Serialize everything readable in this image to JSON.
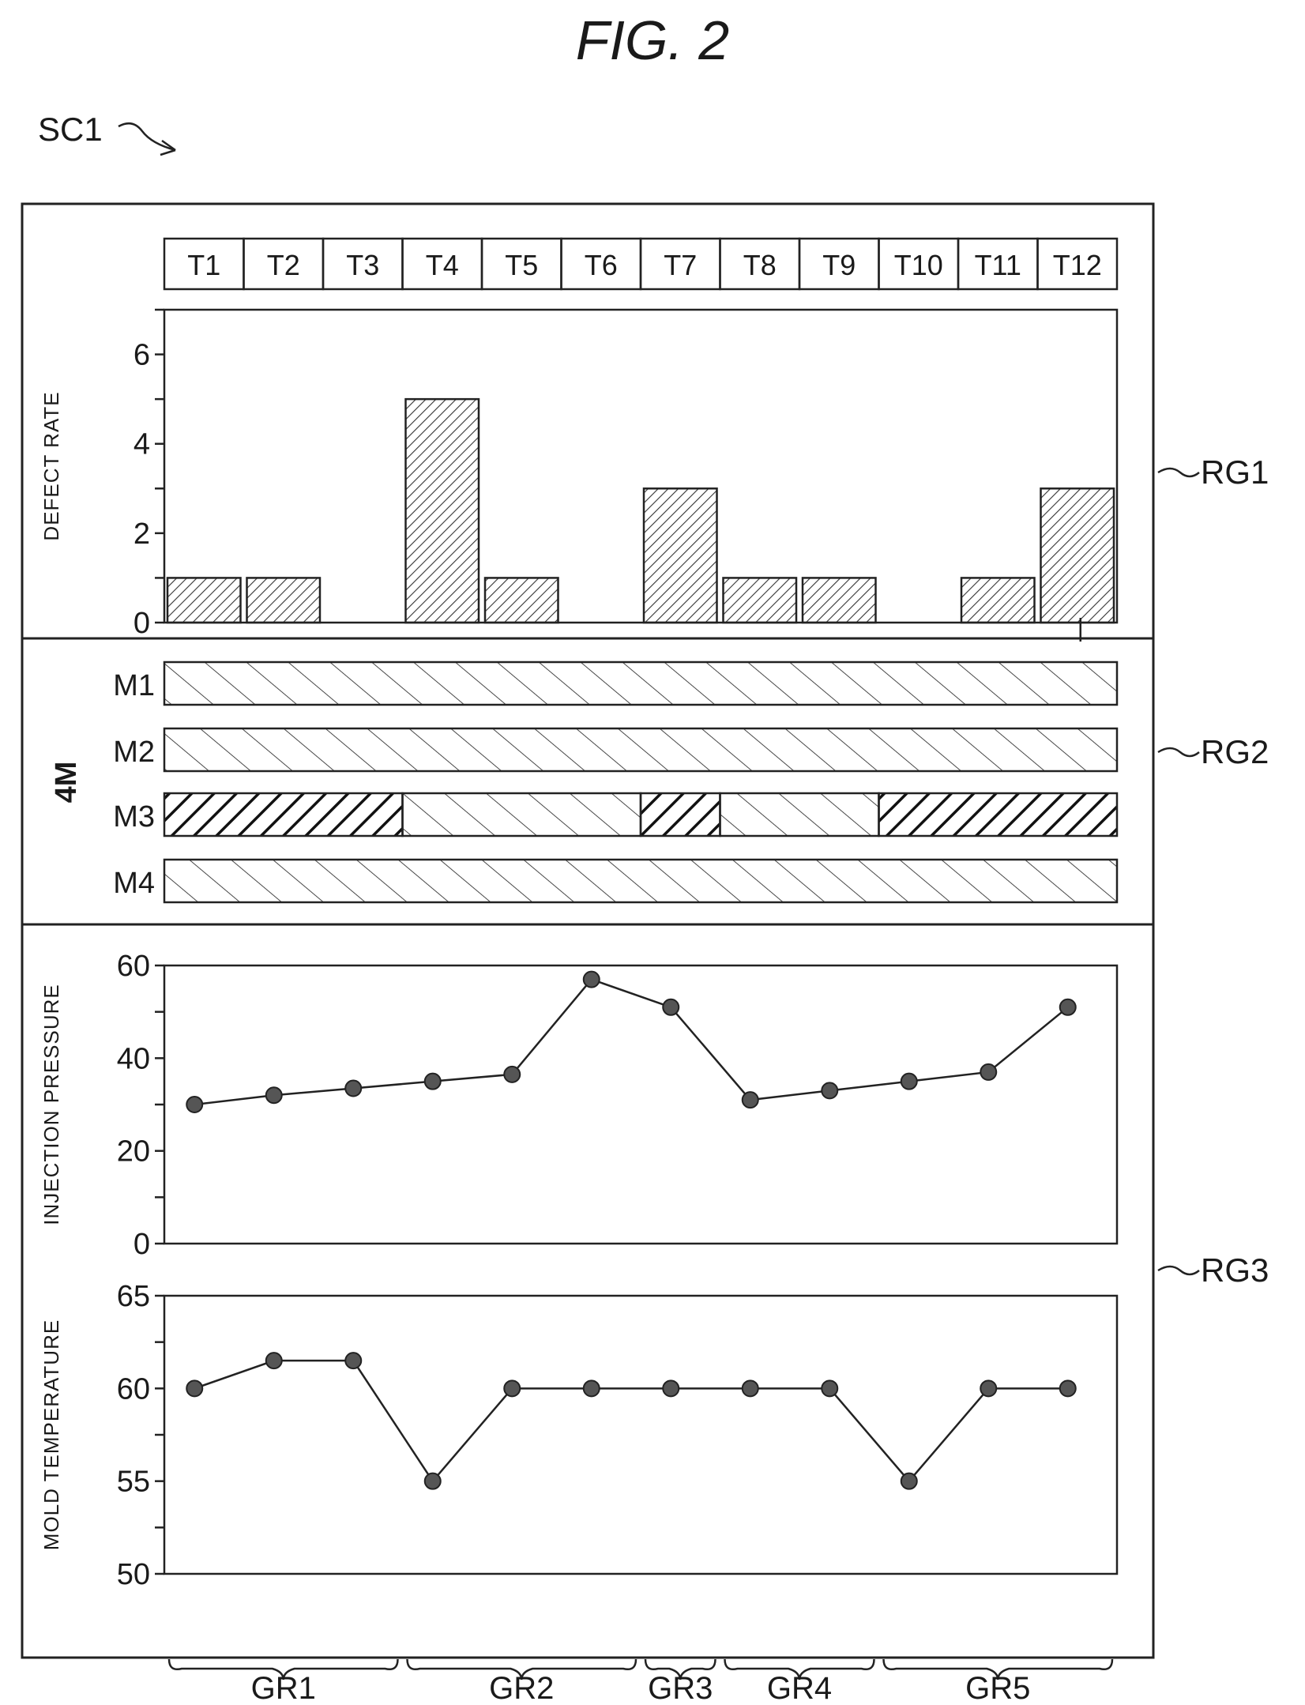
{
  "figure": {
    "title": "FIG. 2",
    "screen_ref": "SC1",
    "region_refs": [
      "RG1",
      "RG2",
      "RG3"
    ],
    "periods": [
      "T1",
      "T2",
      "T3",
      "T4",
      "T5",
      "T6",
      "T7",
      "T8",
      "T9",
      "T10",
      "T11",
      "T12"
    ],
    "group_labels": [
      "GR1",
      "GR2",
      "GR3",
      "GR4",
      "GR5"
    ]
  },
  "chart_data": [
    {
      "type": "bar",
      "categories": [
        "T1",
        "T2",
        "T3",
        "T4",
        "T5",
        "T6",
        "T7",
        "T8",
        "T9",
        "T10",
        "T11",
        "T12"
      ],
      "values": [
        1,
        1,
        0,
        5,
        1,
        0,
        3,
        1,
        1,
        0,
        1,
        3
      ],
      "ylabel": "DEFECT RATE",
      "ylim": [
        0,
        7
      ],
      "yticks": [
        0,
        2,
        4,
        6
      ],
      "grid": false
    },
    {
      "type": "table",
      "title": "4M",
      "rows": [
        {
          "label": "M1",
          "segments": [
            {
              "from": 1,
              "to": 12,
              "pattern": "light"
            }
          ]
        },
        {
          "label": "M2",
          "segments": [
            {
              "from": 1,
              "to": 12,
              "pattern": "light"
            }
          ]
        },
        {
          "label": "M3",
          "segments": [
            {
              "from": 1,
              "to": 3,
              "pattern": "dense"
            },
            {
              "from": 4,
              "to": 6,
              "pattern": "light"
            },
            {
              "from": 7,
              "to": 7,
              "pattern": "dense"
            },
            {
              "from": 8,
              "to": 9,
              "pattern": "light"
            },
            {
              "from": 10,
              "to": 12,
              "pattern": "dense"
            }
          ]
        },
        {
          "label": "M4",
          "segments": [
            {
              "from": 1,
              "to": 12,
              "pattern": "light"
            }
          ]
        }
      ]
    },
    {
      "type": "line",
      "x": [
        "T1",
        "T2",
        "T3",
        "T4",
        "T5",
        "T6",
        "T7",
        "T8",
        "T9",
        "T10",
        "T11",
        "T12"
      ],
      "values": [
        30,
        32,
        33.5,
        35,
        36.5,
        57,
        51,
        31,
        33,
        35,
        37,
        51
      ],
      "ylabel": "INJECTION PRESSURE",
      "ylim": [
        0,
        60
      ],
      "yticks": [
        0,
        20,
        40,
        60
      ],
      "grid": false
    },
    {
      "type": "line",
      "x": [
        "T1",
        "T2",
        "T3",
        "T4",
        "T5",
        "T6",
        "T7",
        "T8",
        "T9",
        "T10",
        "T11",
        "T12"
      ],
      "values": [
        60,
        61.5,
        61.5,
        55,
        60,
        60,
        60,
        60,
        60,
        55,
        60,
        60
      ],
      "ylabel": "MOLD TEMPERATURE",
      "ylim": [
        50,
        65
      ],
      "yticks": [
        50,
        55,
        60,
        65
      ],
      "grid": false
    }
  ],
  "groups": [
    {
      "label": "GR1",
      "from": 1,
      "to": 3
    },
    {
      "label": "GR2",
      "from": 4,
      "to": 6
    },
    {
      "label": "GR3",
      "from": 7,
      "to": 7
    },
    {
      "label": "GR4",
      "from": 8,
      "to": 9
    },
    {
      "label": "GR5",
      "from": 10,
      "to": 12
    }
  ]
}
